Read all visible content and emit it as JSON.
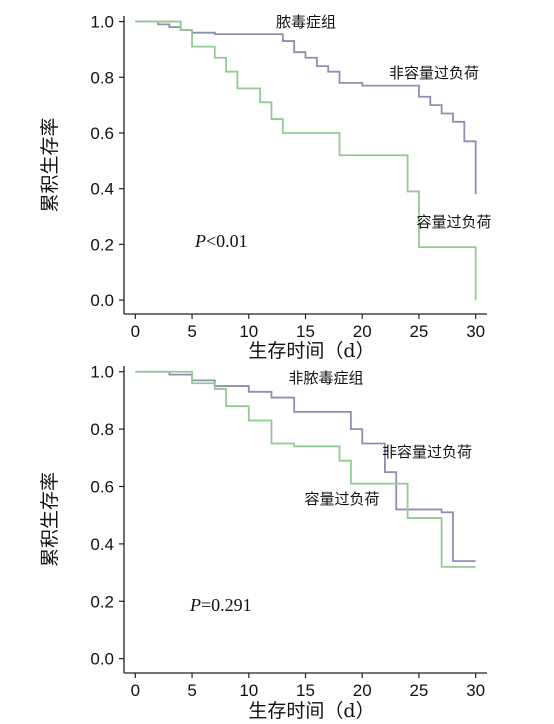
{
  "chart_data": [
    {
      "type": "line",
      "step": true,
      "title": "脓毒症组",
      "xlabel": "生存时间（d）",
      "ylabel": "累积生存率",
      "xlim": [
        -1,
        31
      ],
      "ylim": [
        -0.05,
        1.02
      ],
      "xticks": [
        "0",
        "5",
        "10",
        "15",
        "20",
        "25",
        "30"
      ],
      "yticks": [
        "0.0",
        "0.2",
        "0.4",
        "0.6",
        "0.8",
        "1.0"
      ],
      "annotation": {
        "prefix": "P",
        "value": "<0.01"
      },
      "series": [
        {
          "name": "非容量过负荷",
          "color": "#8c8fb3",
          "x": [
            0,
            2,
            3,
            4,
            5,
            7,
            13,
            14,
            15,
            16,
            17,
            18,
            20,
            25,
            26,
            27,
            28,
            29,
            30
          ],
          "y": [
            1.0,
            0.99,
            0.98,
            0.97,
            0.96,
            0.955,
            0.93,
            0.89,
            0.87,
            0.84,
            0.82,
            0.78,
            0.77,
            0.73,
            0.7,
            0.67,
            0.64,
            0.57,
            0.38
          ]
        },
        {
          "name": "容量过负荷",
          "color": "#93c993",
          "x": [
            0,
            4,
            5,
            7,
            8,
            9,
            11,
            12,
            13,
            18,
            24,
            25,
            30
          ],
          "y": [
            1.0,
            0.97,
            0.91,
            0.87,
            0.82,
            0.76,
            0.71,
            0.65,
            0.6,
            0.52,
            0.39,
            0.19,
            0.0
          ]
        }
      ]
    },
    {
      "type": "line",
      "step": true,
      "title": "非脓毒症组",
      "xlabel": "生存时间（d）",
      "ylabel": "累积生存率",
      "xlim": [
        -1,
        31
      ],
      "ylim": [
        -0.05,
        1.02
      ],
      "xticks": [
        "0",
        "5",
        "10",
        "15",
        "20",
        "25",
        "30"
      ],
      "yticks": [
        "0.0",
        "0.2",
        "0.4",
        "0.6",
        "0.8",
        "1.0"
      ],
      "annotation": {
        "prefix": "P",
        "value": "=0.291"
      },
      "series": [
        {
          "name": "非容量过负荷",
          "color": "#8c8fb3",
          "x": [
            0,
            3,
            5,
            7,
            10,
            12,
            14,
            19,
            20,
            22,
            23,
            27,
            28,
            30
          ],
          "y": [
            1.0,
            0.99,
            0.97,
            0.95,
            0.93,
            0.91,
            0.86,
            0.8,
            0.75,
            0.65,
            0.52,
            0.51,
            0.34,
            0.34
          ]
        },
        {
          "name": "容量过负荷",
          "color": "#93c993",
          "x": [
            0,
            5,
            7,
            8,
            10,
            12,
            14,
            18,
            19,
            24,
            27,
            30
          ],
          "y": [
            1.0,
            0.96,
            0.94,
            0.88,
            0.83,
            0.75,
            0.74,
            0.69,
            0.61,
            0.49,
            0.32,
            0.32
          ]
        }
      ]
    }
  ]
}
